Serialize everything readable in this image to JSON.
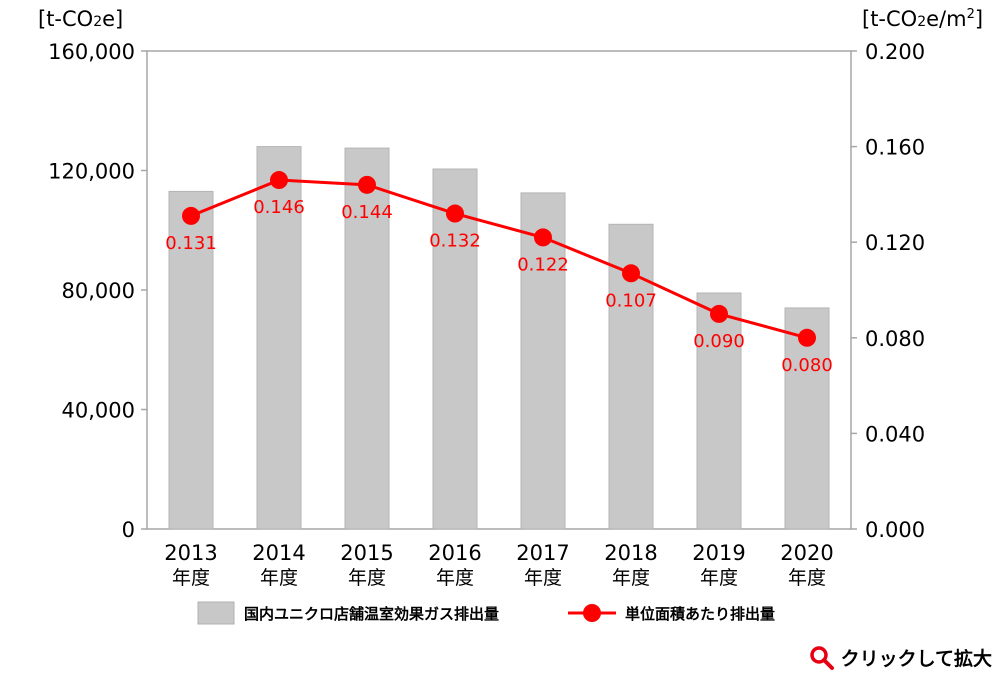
{
  "chart_data": {
    "type": "bar",
    "categories": [
      "2013\n年度",
      "2014\n年度",
      "2015\n年度",
      "2016\n年度",
      "2017\n年度",
      "2018\n年度",
      "2019\n年度",
      "2020\n年度"
    ],
    "x_years": [
      "2013",
      "2014",
      "2015",
      "2016",
      "2017",
      "2018",
      "2019",
      "2020"
    ],
    "x_suffix": "年度",
    "series": [
      {
        "name": "国内ユニクロ店舗温室効果ガス排出量",
        "type": "bar",
        "axis": "left",
        "color": "#c8c8c8",
        "values": [
          113000,
          128000,
          127500,
          120500,
          112500,
          102000,
          79000,
          74000
        ]
      },
      {
        "name": "単位面積あたり排出量",
        "type": "line",
        "axis": "right",
        "color": "#ff0000",
        "values": [
          0.131,
          0.146,
          0.144,
          0.132,
          0.122,
          0.107,
          0.09,
          0.08
        ],
        "labels": [
          "0.131",
          "0.146",
          "0.144",
          "0.132",
          "0.122",
          "0.107",
          "0.090",
          "0.080"
        ]
      }
    ],
    "left_axis": {
      "unit_label": "[t-CO2e]",
      "ylim": [
        0,
        160000
      ],
      "ticks": [
        0,
        40000,
        80000,
        120000,
        160000
      ],
      "tick_labels": [
        "0",
        "40,000",
        "80,000",
        "120,000",
        "160,000"
      ]
    },
    "right_axis": {
      "unit_label": "[t-CO2e/m2]",
      "ylim": [
        0,
        0.2
      ],
      "ticks": [
        0,
        0.04,
        0.08,
        0.12,
        0.16,
        0.2
      ],
      "tick_labels": [
        "0.000",
        "0.040",
        "0.080",
        "0.120",
        "0.160",
        "0.200"
      ]
    },
    "grid": false,
    "legend_position": "bottom"
  },
  "zoom_link": {
    "label": "クリックして拡大",
    "icon": "magnifier-icon"
  }
}
